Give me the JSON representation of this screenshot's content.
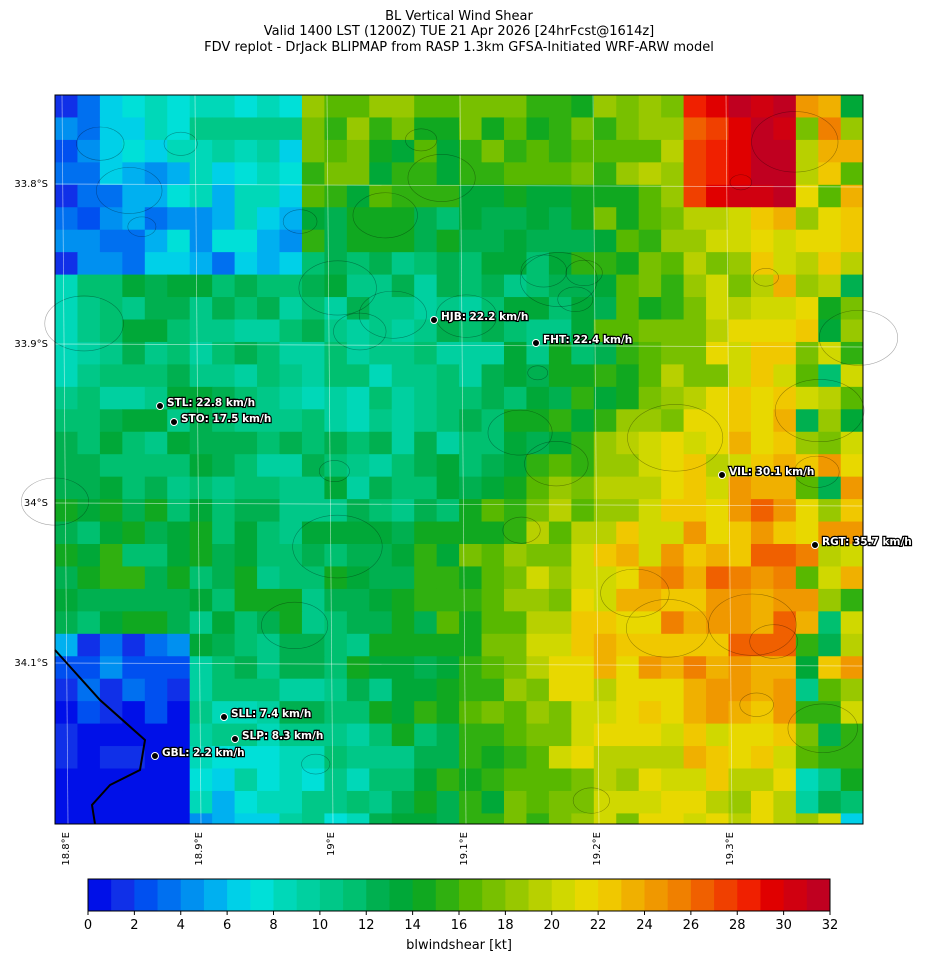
{
  "title": [
    "BL Vertical Wind Shear",
    "Valid 1400 LST (1200Z) TUE 21 Apr 2026 [24hrFcst@1614z]",
    "FDV replot - DrJack BLIPMAP from RASP 1.3km GFSA-Initiated WRF-ARW model"
  ],
  "map": {
    "lat_labels": [
      "33.8°S",
      "33.9°S",
      "34°S",
      "34.1°S"
    ],
    "lon_labels": [
      "18.8°E",
      "18.9°E",
      "19°E",
      "19.1°E",
      "19.2°E",
      "19.3°E"
    ],
    "stations": [
      "HJB: 22.2 km/h",
      "FHT: 22.4 km/h",
      "STL: 22.8 km/h",
      "STO: 17.5 km/h",
      "VIL: 30.1 km/h",
      "RGT: 35.7 km/h",
      "SLL: 7.4 km/h",
      "SLP: 8.3 km/h",
      "GBL: 2.2 km/h"
    ]
  },
  "colorbar": {
    "label": "blwindshear [kt]",
    "lim": [
      0,
      32
    ],
    "ticks": [
      0,
      2,
      4,
      6,
      8,
      10,
      12,
      14,
      16,
      18,
      20,
      22,
      24,
      26,
      28,
      30,
      32
    ],
    "colors": [
      "#0010e8",
      "#1030e8",
      "#0050f0",
      "#0070f0",
      "#0090f0",
      "#00b0f0",
      "#00d0e8",
      "#00e0d8",
      "#00d8b8",
      "#00d0a0",
      "#00c888",
      "#00c070",
      "#00b050",
      "#00a838",
      "#10a820",
      "#30b010",
      "#58b800",
      "#78c000",
      "#98c800",
      "#b8d000",
      "#d0d800",
      "#e8d800",
      "#f0c800",
      "#f0b000",
      "#f09800",
      "#f08000",
      "#f06000",
      "#f04000",
      "#f02000",
      "#e00000",
      "#d00010",
      "#c00020"
    ]
  }
}
